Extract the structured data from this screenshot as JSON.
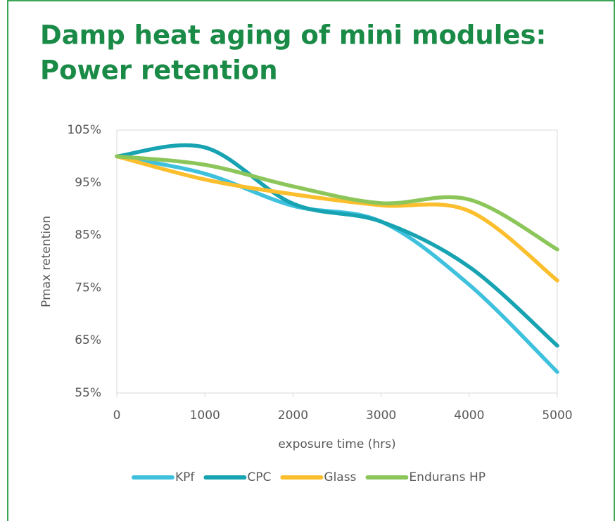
{
  "chart_data": {
    "type": "line",
    "title": [
      "Damp heat aging of mini modules:",
      "Power retention"
    ],
    "x_label": "exposure time (hrs)",
    "y_label": "Pmax retention",
    "x": [
      0,
      1000,
      2000,
      3000,
      4000,
      5000
    ],
    "series": [
      {
        "name": "KPf",
        "color": "#3fc1de",
        "values": [
          100,
          96.7,
          90.6,
          87.6,
          75.6,
          59
        ]
      },
      {
        "name": "CPC",
        "color": "#17a3b2",
        "values": [
          100,
          101.7,
          91,
          87.6,
          79,
          64
        ]
      },
      {
        "name": "Glass",
        "color": "#fbbe2c",
        "values": [
          100,
          95.6,
          92.8,
          90.7,
          89.6,
          76.4
        ]
      },
      {
        "name": "Endurans HP",
        "color": "#8cc65a",
        "values": [
          100,
          98.4,
          94.3,
          91.1,
          91.8,
          82.3
        ]
      }
    ],
    "xlim": [
      0,
      5000
    ],
    "xticks": [
      0,
      1000,
      2000,
      3000,
      4000,
      5000
    ],
    "ylim": [
      55,
      105
    ],
    "yticks": [
      {
        "value": 55,
        "label": "55%"
      },
      {
        "value": 65,
        "label": "65%"
      },
      {
        "value": 75,
        "label": "75%"
      },
      {
        "value": 85,
        "label": "85%"
      },
      {
        "value": 95,
        "label": "95%"
      },
      {
        "value": 105,
        "label": "105%"
      }
    ],
    "legend": "bottom"
  }
}
